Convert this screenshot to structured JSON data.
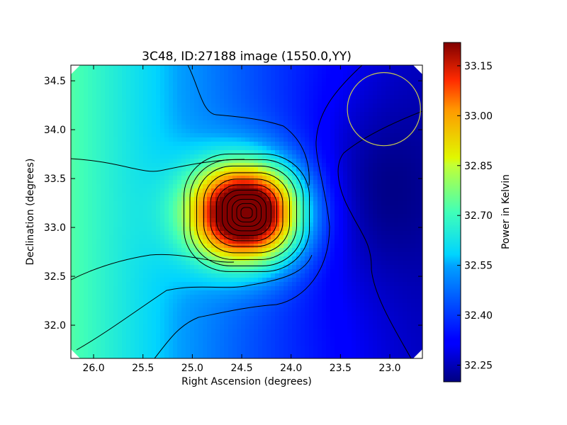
{
  "chart_data": {
    "type": "heatmap",
    "title": "3C48, ID:27188 image (1550.0,YY)",
    "xlabel": "Right Ascension (degrees)",
    "ylabel": "Declination (degrees)",
    "colorbar_label": "Power in Kelvin",
    "xlim": [
      26.23,
      22.67
    ],
    "ylim": [
      31.66,
      34.66
    ],
    "x_ticks": [
      26.0,
      25.5,
      25.0,
      24.5,
      24.0,
      23.5,
      23.0
    ],
    "x_tick_labels": [
      "26.0",
      "25.5",
      "25.0",
      "24.5",
      "24.0",
      "23.5",
      "23.0"
    ],
    "y_ticks": [
      32.0,
      32.5,
      33.0,
      33.5,
      34.0,
      34.5
    ],
    "y_tick_labels": [
      "32.0",
      "32.5",
      "33.0",
      "33.5",
      "34.0",
      "34.5"
    ],
    "colorbar_range": [
      32.2,
      33.22
    ],
    "colorbar_ticks": [
      32.25,
      32.4,
      32.55,
      32.7,
      32.85,
      33.0,
      33.15
    ],
    "colorbar_tick_labels": [
      "32.25",
      "32.40",
      "32.55",
      "32.70",
      "32.85",
      "33.00",
      "33.15"
    ],
    "colormap": "jet",
    "peak": {
      "ra": 24.45,
      "dec": 33.15,
      "value": 33.22
    },
    "beam_circle": {
      "ra": 23.06,
      "dec": 34.21,
      "radius_deg": 0.37,
      "color": "#c8c850"
    },
    "grid": false,
    "contours": true
  }
}
